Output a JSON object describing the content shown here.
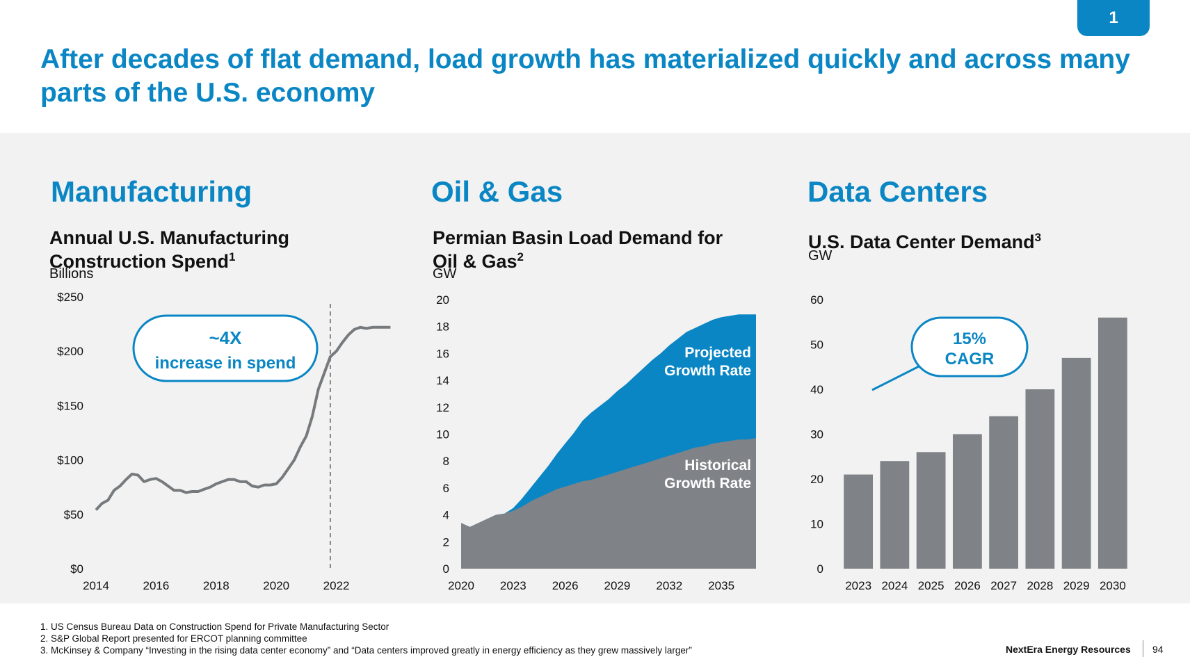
{
  "page_badge": "1",
  "title": "After decades of flat demand, load growth has materialized quickly and across many parts of the U.S. economy",
  "colors": {
    "accent": "#0a86c4",
    "gray": "#7f8286",
    "line": "#777a7d",
    "panel": "#f2f2f2"
  },
  "sections": [
    {
      "heading": "Manufacturing",
      "chart_title": "Annual U.S. Manufacturing Construction Spend",
      "footnote_ref": "1",
      "unit": "Billions"
    },
    {
      "heading": "Oil & Gas",
      "chart_title": "Permian Basin Load Demand for Oil & Gas",
      "footnote_ref": "2",
      "unit": "GW"
    },
    {
      "heading": "Data Centers",
      "chart_title": "U.S. Data Center Demand",
      "footnote_ref": "3",
      "unit": "GW"
    }
  ],
  "chart_data": [
    {
      "type": "line",
      "title": "Annual U.S. Manufacturing Construction Spend",
      "ylabel": "Billions",
      "xlim": [
        2014,
        2024
      ],
      "ylim": [
        0,
        250
      ],
      "y_ticks": [
        "$0",
        "$50",
        "$100",
        "$150",
        "$200",
        "$250"
      ],
      "x_ticks": [
        "2014",
        "2016",
        "2018",
        "2020",
        "2022"
      ],
      "x_tick_values": [
        2014,
        2016,
        2018,
        2020,
        2022
      ],
      "x": [
        2014.0,
        2014.2,
        2014.4,
        2014.6,
        2014.8,
        2015.0,
        2015.2,
        2015.4,
        2015.6,
        2015.8,
        2016.0,
        2016.2,
        2016.4,
        2016.6,
        2016.8,
        2017.0,
        2017.2,
        2017.4,
        2017.6,
        2017.8,
        2018.0,
        2018.2,
        2018.4,
        2018.6,
        2018.8,
        2019.0,
        2019.2,
        2019.4,
        2019.6,
        2019.8,
        2020.0,
        2020.2,
        2020.4,
        2020.6,
        2020.8,
        2021.0,
        2021.2,
        2021.4,
        2021.6,
        2021.8,
        2022.0,
        2022.2,
        2022.4,
        2022.6,
        2022.8,
        2023.0,
        2023.2,
        2023.4,
        2023.6,
        2023.8
      ],
      "y": [
        54,
        60,
        63,
        72,
        76,
        82,
        87,
        86,
        80,
        82,
        83,
        80,
        76,
        72,
        72,
        70,
        71,
        71,
        73,
        75,
        78,
        80,
        82,
        82,
        80,
        80,
        76,
        75,
        77,
        77,
        78,
        84,
        92,
        100,
        112,
        122,
        140,
        165,
        180,
        195,
        200,
        208,
        215,
        220,
        222,
        221,
        222,
        222,
        222,
        222
      ],
      "annotation": {
        "line1": "~4X",
        "line2": "increase in spend"
      },
      "reference_line_x": 2021.8
    },
    {
      "type": "area",
      "title": "Permian Basin Load Demand for Oil & Gas",
      "ylabel": "GW",
      "xlim": [
        2020,
        2037
      ],
      "ylim": [
        0,
        20
      ],
      "y_ticks": [
        "0",
        "2",
        "4",
        "6",
        "8",
        "10",
        "12",
        "14",
        "16",
        "18",
        "20"
      ],
      "x_ticks": [
        "2020",
        "2023",
        "2026",
        "2029",
        "2032",
        "2035"
      ],
      "x_tick_values": [
        2020,
        2023,
        2026,
        2029,
        2032,
        2035
      ],
      "x": [
        2020,
        2020.5,
        2021,
        2021.5,
        2022,
        2022.5,
        2023,
        2023.5,
        2024,
        2024.5,
        2025,
        2025.5,
        2026,
        2026.5,
        2027,
        2027.5,
        2028,
        2028.5,
        2029,
        2029.5,
        2030,
        2030.5,
        2031,
        2031.5,
        2032,
        2032.5,
        2033,
        2033.5,
        2034,
        2034.5,
        2035,
        2035.5,
        2036,
        2036.5,
        2037
      ],
      "series": [
        {
          "name": "Historical Growth Rate",
          "values": [
            3.4,
            3.1,
            3.4,
            3.7,
            4.0,
            4.1,
            4.3,
            4.6,
            5.0,
            5.3,
            5.6,
            5.9,
            6.1,
            6.3,
            6.5,
            6.6,
            6.8,
            7.0,
            7.2,
            7.4,
            7.6,
            7.8,
            8.0,
            8.2,
            8.4,
            8.6,
            8.8,
            9.0,
            9.1,
            9.3,
            9.4,
            9.5,
            9.6,
            9.6,
            9.7
          ]
        },
        {
          "name": "Projected Growth Rate",
          "values": [
            3.4,
            3.1,
            3.4,
            3.7,
            4.0,
            4.1,
            4.5,
            5.2,
            6.0,
            6.8,
            7.6,
            8.5,
            9.3,
            10.1,
            11.0,
            11.6,
            12.1,
            12.6,
            13.2,
            13.7,
            14.3,
            14.9,
            15.5,
            16.0,
            16.6,
            17.1,
            17.6,
            17.9,
            18.2,
            18.5,
            18.7,
            18.8,
            18.9,
            18.9,
            18.9
          ]
        }
      ],
      "series_labels": [
        {
          "line1": "Projected",
          "line2": "Growth Rate"
        },
        {
          "line1": "Historical",
          "line2": "Growth Rate"
        }
      ]
    },
    {
      "type": "bar",
      "title": "U.S. Data Center Demand",
      "ylabel": "GW",
      "ylim": [
        0,
        60
      ],
      "y_ticks": [
        "0",
        "10",
        "20",
        "30",
        "40",
        "50",
        "60"
      ],
      "categories": [
        "2023",
        "2024",
        "2025",
        "2026",
        "2027",
        "2028",
        "2029",
        "2030"
      ],
      "values": [
        21,
        24,
        26,
        30,
        34,
        40,
        47,
        56
      ],
      "annotation": {
        "line1": "15%",
        "line2": "CAGR"
      }
    }
  ],
  "footnotes": [
    "1.  US Census Bureau Data on Construction Spend for Private Manufacturing Sector",
    "2.  S&P Global Report presented for ERCOT planning committee",
    "3.  McKinsey & Company “Investing in the rising data center economy” and “Data centers improved greatly in energy efficiency as they grew massively larger”"
  ],
  "brand": "NextEra Energy Resources",
  "page_number": "94"
}
